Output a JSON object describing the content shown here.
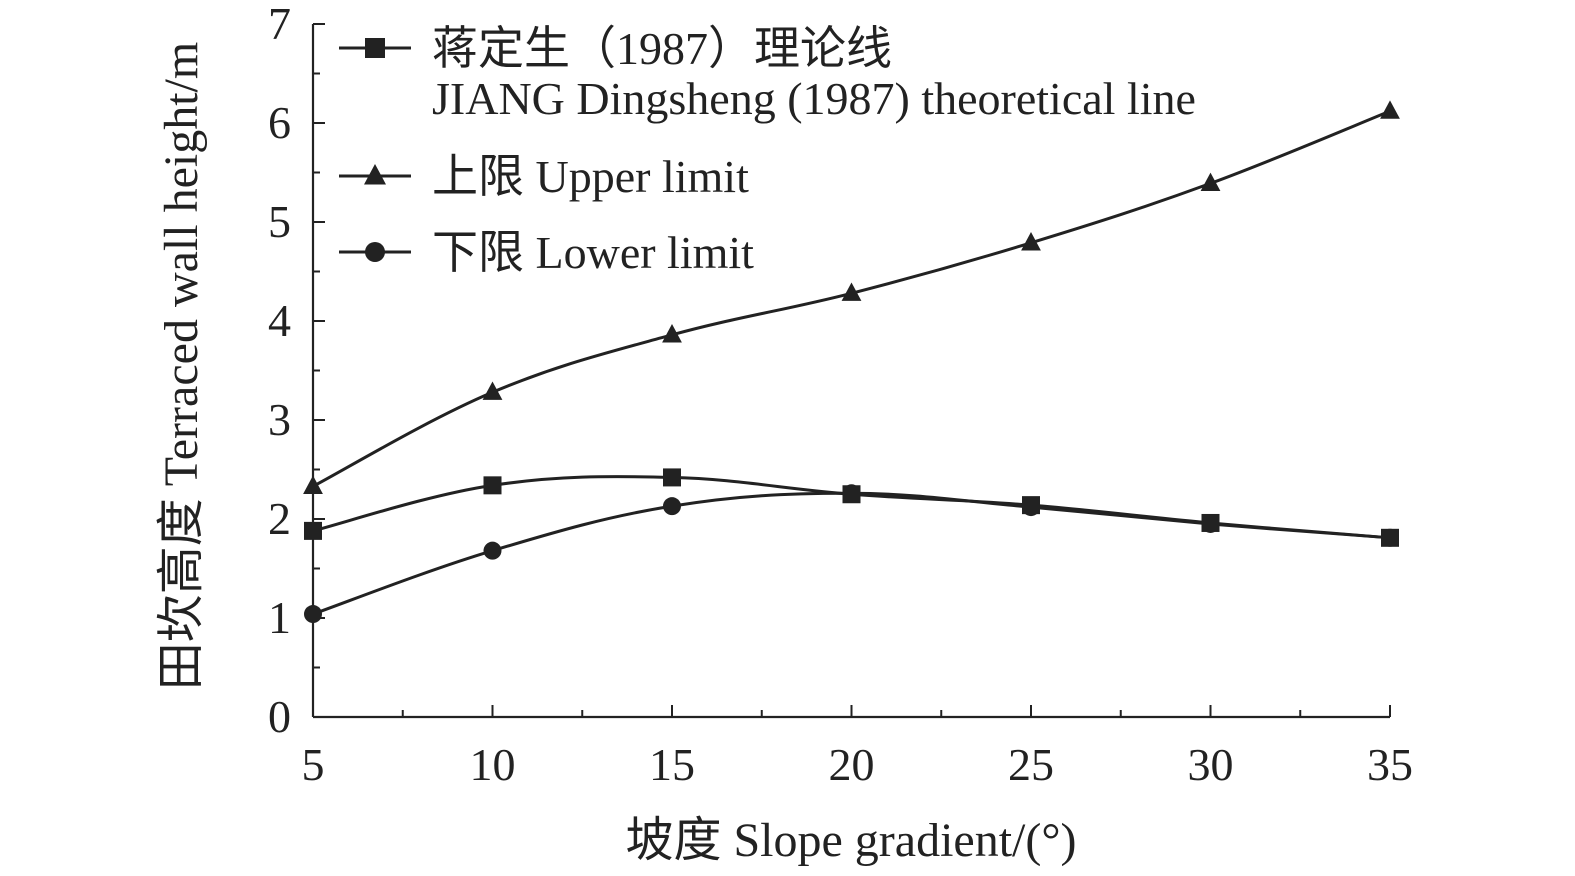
{
  "chart_data": {
    "type": "line",
    "xlabel": "坡度 Slope gradient/(°)",
    "ylabel": "田坎高度 Terraced wall height/m",
    "xlim": [
      5,
      35
    ],
    "ylim": [
      0,
      7
    ],
    "x_ticks": [
      5,
      10,
      15,
      20,
      25,
      30,
      35
    ],
    "y_ticks": [
      0,
      1,
      2,
      3,
      4,
      5,
      6,
      7
    ],
    "x_minor_step": 2.5,
    "y_minor_step": 0.5,
    "grid": false,
    "legend_position": "top-left",
    "x": [
      5,
      10,
      15,
      20,
      25,
      30,
      35
    ],
    "series": [
      {
        "name": "蒋定生（1987）理论线",
        "name_en": "JIANG Dingsheng (1987) theoretical line",
        "marker": "square",
        "values": [
          1.88,
          2.34,
          2.42,
          2.25,
          2.14,
          1.96,
          1.81
        ]
      },
      {
        "name": "上限 Upper limit",
        "marker": "triangle",
        "values": [
          2.33,
          3.28,
          3.86,
          4.28,
          4.79,
          5.39,
          6.12
        ]
      },
      {
        "name": "下限 Lower limit",
        "marker": "circle",
        "values": [
          1.04,
          1.68,
          2.13,
          2.26,
          2.12,
          1.95,
          1.81
        ]
      }
    ],
    "colors": {
      "line": "#222222",
      "text": "#222222",
      "background": "#ffffff"
    }
  }
}
